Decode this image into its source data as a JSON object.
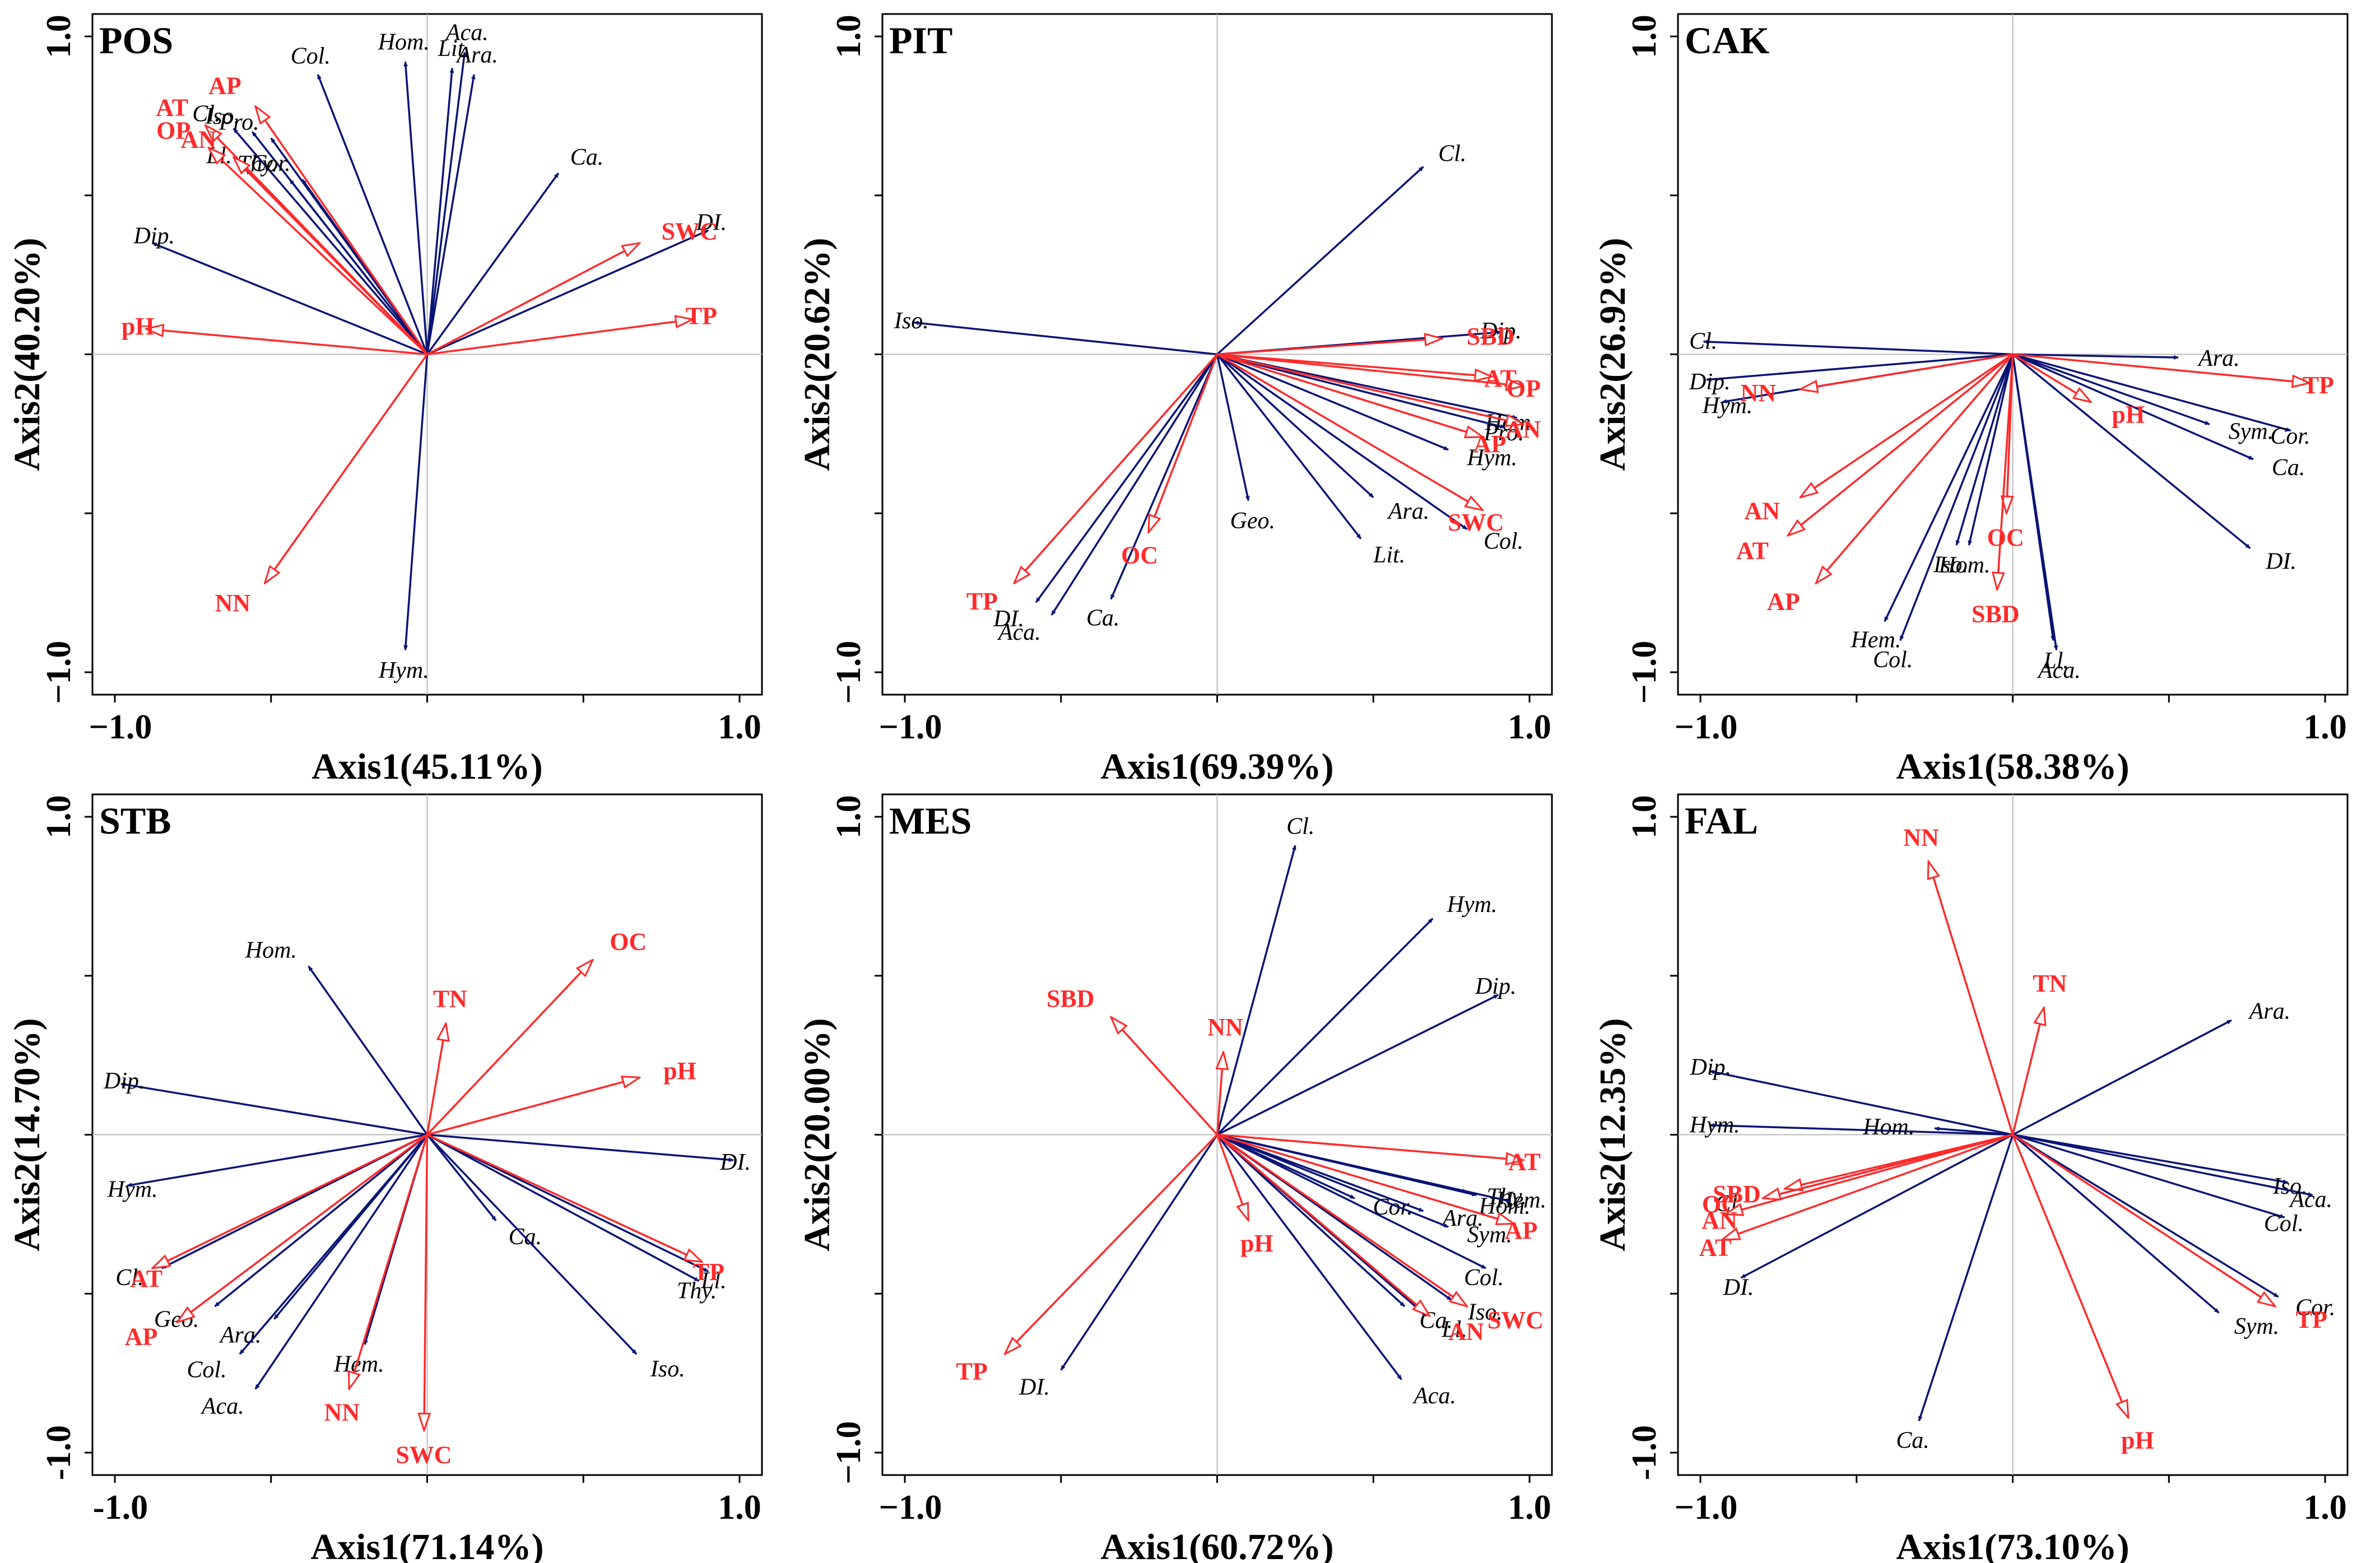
{
  "colors": {
    "species": "#0a1475",
    "env": "#ff2a2a",
    "axis": "#000000",
    "grid": "#bbbbbb"
  },
  "chart_data": [
    {
      "type": "scatter",
      "panel": "POS",
      "xlabel": "Axis1(45.11%)",
      "ylabel": "Axis2(40.20%)",
      "xlim": [
        -1.0,
        1.0
      ],
      "ylim": [
        -1.0,
        1.0
      ],
      "x_tick_labels": [
        "−1.0",
        "1.0"
      ],
      "y_tick_labels": [
        "−1.0",
        "1.0"
      ],
      "env_vectors": [
        {
          "label": "AP",
          "x": -0.55,
          "y": 0.78
        },
        {
          "label": "AT",
          "x": -0.71,
          "y": 0.72
        },
        {
          "label": "OP",
          "x": -0.7,
          "y": 0.65
        },
        {
          "label": "AN",
          "x": -0.62,
          "y": 0.62
        },
        {
          "label": "pH",
          "x": -0.9,
          "y": 0.08
        },
        {
          "label": "SWC",
          "x": 0.68,
          "y": 0.35
        },
        {
          "label": "TP",
          "x": 0.85,
          "y": 0.11
        },
        {
          "label": "NN",
          "x": -0.52,
          "y": -0.72
        }
      ],
      "species_vectors": [
        {
          "label": "Col.",
          "x": -0.35,
          "y": 0.88
        },
        {
          "label": "Hom.",
          "x": -0.07,
          "y": 0.92
        },
        {
          "label": "Aca.",
          "x": 0.12,
          "y": 0.95
        },
        {
          "label": "Ara.",
          "x": 0.15,
          "y": 0.88
        },
        {
          "label": "Lit.",
          "x": 0.08,
          "y": 0.9
        },
        {
          "label": "Cl.",
          "x": -0.62,
          "y": 0.71
        },
        {
          "label": "Iso.",
          "x": -0.56,
          "y": 0.7
        },
        {
          "label": "Pro.",
          "x": -0.5,
          "y": 0.68
        },
        {
          "label": "Thy.",
          "x": -0.44,
          "y": 0.55
        },
        {
          "label": "Cor.",
          "x": -0.4,
          "y": 0.55
        },
        {
          "label": "Ll.",
          "x": -0.58,
          "y": 0.58
        },
        {
          "label": "Dip.",
          "x": -0.88,
          "y": 0.35
        },
        {
          "label": "Ca.",
          "x": 0.42,
          "y": 0.57
        },
        {
          "label": "DI.",
          "x": 0.9,
          "y": 0.39
        },
        {
          "label": "Hym.",
          "x": -0.07,
          "y": -0.93
        }
      ]
    },
    {
      "type": "scatter",
      "panel": "PIT",
      "xlabel": "Axis1(69.39%)",
      "ylabel": "Axis2(20.62%)",
      "xlim": [
        -1.0,
        1.0
      ],
      "ylim": [
        -1.0,
        1.0
      ],
      "x_tick_labels": [
        "−1.0",
        "1.0"
      ],
      "y_tick_labels": [
        "−1.0",
        "1.0"
      ],
      "env_vectors": [
        {
          "label": "SBD",
          "x": 0.72,
          "y": 0.05
        },
        {
          "label": "AT",
          "x": 0.88,
          "y": -0.07
        },
        {
          "label": "OP",
          "x": 0.98,
          "y": -0.1
        },
        {
          "label": "AN",
          "x": 0.98,
          "y": -0.22
        },
        {
          "label": "AP",
          "x": 0.85,
          "y": -0.26
        },
        {
          "label": "SWC",
          "x": 0.85,
          "y": -0.49
        },
        {
          "label": "TP",
          "x": -0.65,
          "y": -0.72
        },
        {
          "label": "OC",
          "x": -0.22,
          "y": -0.56
        }
      ],
      "species_vectors": [
        {
          "label": "Cl.",
          "x": 0.66,
          "y": 0.59
        },
        {
          "label": "Iso.",
          "x": -0.97,
          "y": 0.1
        },
        {
          "label": "Dip.",
          "x": 0.91,
          "y": 0.07
        },
        {
          "label": "Hom.",
          "x": 0.96,
          "y": -0.2
        },
        {
          "label": "Hym.",
          "x": 0.74,
          "y": -0.3
        },
        {
          "label": "Pro.",
          "x": 0.92,
          "y": -0.23
        },
        {
          "label": "Ara.",
          "x": 0.5,
          "y": -0.45
        },
        {
          "label": "Col.",
          "x": 0.8,
          "y": -0.55
        },
        {
          "label": "Lit.",
          "x": 0.46,
          "y": -0.58
        },
        {
          "label": "Geo.",
          "x": 0.1,
          "y": -0.46
        },
        {
          "label": "Ca.",
          "x": -0.34,
          "y": -0.77
        },
        {
          "label": "Aca.",
          "x": -0.53,
          "y": -0.82
        },
        {
          "label": "DI.",
          "x": -0.58,
          "y": -0.78
        }
      ]
    },
    {
      "type": "scatter",
      "panel": "CAK",
      "xlabel": "Axis1(58.38%)",
      "ylabel": "Axis2(26.92%)",
      "xlim": [
        -1.0,
        1.0
      ],
      "ylim": [
        -1.0,
        1.0
      ],
      "x_tick_labels": [
        "−1.0",
        "1.0"
      ],
      "y_tick_labels": [
        "−1.0",
        "1.0"
      ],
      "env_vectors": [
        {
          "label": "TP",
          "x": 0.95,
          "y": -0.09
        },
        {
          "label": "NN",
          "x": -0.68,
          "y": -0.11
        },
        {
          "label": "pH",
          "x": 0.25,
          "y": -0.15
        },
        {
          "label": "AN",
          "x": -0.68,
          "y": -0.45
        },
        {
          "label": "AT",
          "x": -0.72,
          "y": -0.57
        },
        {
          "label": "AP",
          "x": -0.63,
          "y": -0.72
        },
        {
          "label": "OC",
          "x": -0.02,
          "y": -0.5
        },
        {
          "label": "SBD",
          "x": -0.05,
          "y": -0.74
        }
      ],
      "species_vectors": [
        {
          "label": "Cl.",
          "x": -0.99,
          "y": 0.04
        },
        {
          "label": "Ara.",
          "x": 0.53,
          "y": -0.01
        },
        {
          "label": "Dip.",
          "x": -0.98,
          "y": -0.08
        },
        {
          "label": "Hym.",
          "x": -0.93,
          "y": -0.15
        },
        {
          "label": "Sym.",
          "x": 0.63,
          "y": -0.22
        },
        {
          "label": "Cor.",
          "x": 0.89,
          "y": -0.24
        },
        {
          "label": "Ca.",
          "x": 0.77,
          "y": -0.33
        },
        {
          "label": "DI.",
          "x": 0.76,
          "y": -0.61
        },
        {
          "label": "Hem.",
          "x": -0.41,
          "y": -0.84
        },
        {
          "label": "Col.",
          "x": -0.36,
          "y": -0.9
        },
        {
          "label": "Iso.",
          "x": -0.18,
          "y": -0.6
        },
        {
          "label": "Hom.",
          "x": -0.14,
          "y": -0.6
        },
        {
          "label": "Ll.",
          "x": 0.13,
          "y": -0.9
        },
        {
          "label": "Aca.",
          "x": 0.14,
          "y": -0.93
        }
      ]
    },
    {
      "type": "scatter",
      "panel": "STB",
      "xlabel": "Axis1(71.14%)",
      "ylabel": "Axis2(14.70%)",
      "xlim": [
        -1.0,
        1.0
      ],
      "ylim": [
        -1.0,
        1.0
      ],
      "x_tick_labels": [
        "-1.0",
        "1.0"
      ],
      "y_tick_labels": [
        "-1.0",
        "1.0"
      ],
      "env_vectors": [
        {
          "label": "TN",
          "x": 0.06,
          "y": 0.35
        },
        {
          "label": "OC",
          "x": 0.53,
          "y": 0.55
        },
        {
          "label": "pH",
          "x": 0.68,
          "y": 0.18
        },
        {
          "label": "TP",
          "x": 0.88,
          "y": -0.4
        },
        {
          "label": "AT",
          "x": -0.88,
          "y": -0.42
        },
        {
          "label": "AP",
          "x": -0.8,
          "y": -0.59
        },
        {
          "label": "NN",
          "x": -0.25,
          "y": -0.8
        },
        {
          "label": "SWC",
          "x": -0.01,
          "y": -0.93
        }
      ],
      "species_vectors": [
        {
          "label": "Hom.",
          "x": -0.38,
          "y": 0.53
        },
        {
          "label": "Dip.",
          "x": -0.98,
          "y": 0.16
        },
        {
          "label": "Hym.",
          "x": -0.96,
          "y": -0.16
        },
        {
          "label": "DI.",
          "x": 0.98,
          "y": -0.08
        },
        {
          "label": "Ca.",
          "x": 0.22,
          "y": -0.27
        },
        {
          "label": "Ll.",
          "x": 0.9,
          "y": -0.43
        },
        {
          "label": "Thy.",
          "x": 0.87,
          "y": -0.46
        },
        {
          "label": "Iso.",
          "x": 0.67,
          "y": -0.69
        },
        {
          "label": "Cl.",
          "x": -0.85,
          "y": -0.42
        },
        {
          "label": "Geo.",
          "x": -0.68,
          "y": -0.54
        },
        {
          "label": "Ara.",
          "x": -0.49,
          "y": -0.58
        },
        {
          "label": "Col.",
          "x": -0.6,
          "y": -0.69
        },
        {
          "label": "Aca.",
          "x": -0.55,
          "y": -0.8
        },
        {
          "label": "Hem.",
          "x": -0.2,
          "y": -0.66
        }
      ]
    },
    {
      "type": "scatter",
      "panel": "MES",
      "xlabel": "Axis1(60.72%)",
      "ylabel": "Axis2(20.00%)",
      "xlim": [
        -1.0,
        1.0
      ],
      "ylim": [
        -1.0,
        1.0
      ],
      "x_tick_labels": [
        "−1.0",
        "1.0"
      ],
      "y_tick_labels": [
        "−1.0",
        "1.0"
      ],
      "env_vectors": [
        {
          "label": "SBD",
          "x": -0.34,
          "y": 0.37
        },
        {
          "label": "NN",
          "x": 0.02,
          "y": 0.26
        },
        {
          "label": "AT",
          "x": 0.98,
          "y": -0.08
        },
        {
          "label": "AP",
          "x": 0.95,
          "y": -0.28
        },
        {
          "label": "SWC",
          "x": 0.8,
          "y": -0.54
        },
        {
          "label": "AN",
          "x": 0.68,
          "y": -0.57
        },
        {
          "label": "pH",
          "x": 0.1,
          "y": -0.27
        },
        {
          "label": "TP",
          "x": -0.68,
          "y": -0.69
        }
      ],
      "species_vectors": [
        {
          "label": "Cl.",
          "x": 0.25,
          "y": 0.91
        },
        {
          "label": "Hym.",
          "x": 0.69,
          "y": 0.68
        },
        {
          "label": "Dip.",
          "x": 0.9,
          "y": 0.44
        },
        {
          "label": "Thy.",
          "x": 0.8,
          "y": -0.18
        },
        {
          "label": "Hem.",
          "x": 0.83,
          "y": -0.19
        },
        {
          "label": "Hom.",
          "x": 0.94,
          "y": -0.21
        },
        {
          "label": "Cor.",
          "x": 0.44,
          "y": -0.2
        },
        {
          "label": "Ara.",
          "x": 0.66,
          "y": -0.24
        },
        {
          "label": "Sym.",
          "x": 0.74,
          "y": -0.29
        },
        {
          "label": "Col.",
          "x": 0.86,
          "y": -0.42
        },
        {
          "label": "Iso.",
          "x": 0.75,
          "y": -0.52
        },
        {
          "label": "Ll.",
          "x": 0.67,
          "y": -0.57
        },
        {
          "label": "Ca.",
          "x": 0.6,
          "y": -0.54
        },
        {
          "label": "Aca.",
          "x": 0.59,
          "y": -0.77
        },
        {
          "label": "DI.",
          "x": -0.5,
          "y": -0.74
        }
      ]
    },
    {
      "type": "scatter",
      "panel": "FAL",
      "xlabel": "Axis1(73.10%)",
      "ylabel": "Axis2(12.35%)",
      "xlim": [
        -1.0,
        1.0
      ],
      "ylim": [
        -1.0,
        1.0
      ],
      "x_tick_labels": [
        "−1.0",
        "1.0"
      ],
      "y_tick_labels": [
        "-1.0",
        "1.0"
      ],
      "env_vectors": [
        {
          "label": "NN",
          "x": -0.27,
          "y": 0.86
        },
        {
          "label": "TN",
          "x": 0.1,
          "y": 0.4
        },
        {
          "label": "SBD",
          "x": -0.73,
          "y": -0.17
        },
        {
          "label": "OC",
          "x": -0.8,
          "y": -0.2
        },
        {
          "label": "AN",
          "x": -0.92,
          "y": -0.25
        },
        {
          "label": "AT",
          "x": -0.93,
          "y": -0.33
        },
        {
          "label": "TP",
          "x": 0.84,
          "y": -0.54
        },
        {
          "label": "pH",
          "x": 0.37,
          "y": -0.89
        }
      ],
      "species_vectors": [
        {
          "label": "Ara.",
          "x": 0.7,
          "y": 0.36
        },
        {
          "label": "Dip.",
          "x": -0.97,
          "y": 0.2
        },
        {
          "label": "Hym.",
          "x": -0.97,
          "y": 0.03
        },
        {
          "label": "Hom.",
          "x": -0.25,
          "y": 0.02
        },
        {
          "label": "Iso.",
          "x": 0.88,
          "y": -0.15
        },
        {
          "label": "Aca.",
          "x": 0.96,
          "y": -0.19
        },
        {
          "label": "Col.",
          "x": 0.87,
          "y": -0.26
        },
        {
          "label": "Cor.",
          "x": 0.85,
          "y": -0.51
        },
        {
          "label": "Sym.",
          "x": 0.66,
          "y": -0.56
        },
        {
          "label": "Cl.",
          "x": -0.8,
          "y": -0.2
        },
        {
          "label": "DI.",
          "x": -0.87,
          "y": -0.45
        },
        {
          "label": "Ca.",
          "x": -0.3,
          "y": -0.9
        }
      ]
    }
  ]
}
